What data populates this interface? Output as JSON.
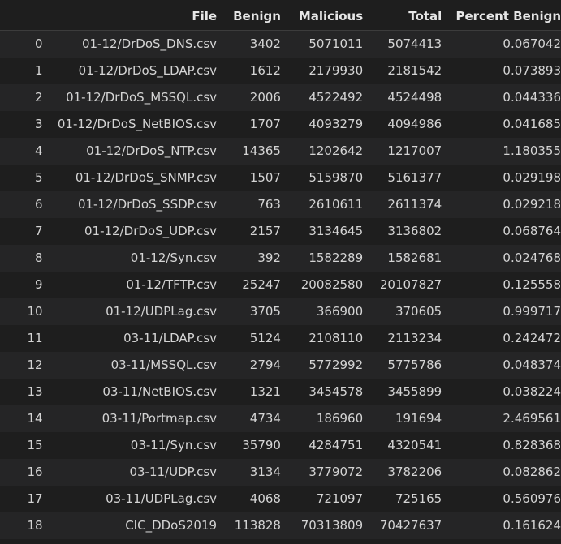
{
  "table": {
    "columns": [
      "File",
      "Benign",
      "Malicious",
      "Total",
      "Percent Benign"
    ],
    "rows": [
      {
        "index": "0",
        "file": "01-12/DrDoS_DNS.csv",
        "benign": "3402",
        "malicious": "5071011",
        "total": "5074413",
        "percent": "0.067042"
      },
      {
        "index": "1",
        "file": "01-12/DrDoS_LDAP.csv",
        "benign": "1612",
        "malicious": "2179930",
        "total": "2181542",
        "percent": "0.073893"
      },
      {
        "index": "2",
        "file": "01-12/DrDoS_MSSQL.csv",
        "benign": "2006",
        "malicious": "4522492",
        "total": "4524498",
        "percent": "0.044336"
      },
      {
        "index": "3",
        "file": "01-12/DrDoS_NetBIOS.csv",
        "benign": "1707",
        "malicious": "4093279",
        "total": "4094986",
        "percent": "0.041685"
      },
      {
        "index": "4",
        "file": "01-12/DrDoS_NTP.csv",
        "benign": "14365",
        "malicious": "1202642",
        "total": "1217007",
        "percent": "1.180355"
      },
      {
        "index": "5",
        "file": "01-12/DrDoS_SNMP.csv",
        "benign": "1507",
        "malicious": "5159870",
        "total": "5161377",
        "percent": "0.029198"
      },
      {
        "index": "6",
        "file": "01-12/DrDoS_SSDP.csv",
        "benign": "763",
        "malicious": "2610611",
        "total": "2611374",
        "percent": "0.029218"
      },
      {
        "index": "7",
        "file": "01-12/DrDoS_UDP.csv",
        "benign": "2157",
        "malicious": "3134645",
        "total": "3136802",
        "percent": "0.068764"
      },
      {
        "index": "8",
        "file": "01-12/Syn.csv",
        "benign": "392",
        "malicious": "1582289",
        "total": "1582681",
        "percent": "0.024768"
      },
      {
        "index": "9",
        "file": "01-12/TFTP.csv",
        "benign": "25247",
        "malicious": "20082580",
        "total": "20107827",
        "percent": "0.125558"
      },
      {
        "index": "10",
        "file": "01-12/UDPLag.csv",
        "benign": "3705",
        "malicious": "366900",
        "total": "370605",
        "percent": "0.999717"
      },
      {
        "index": "11",
        "file": "03-11/LDAP.csv",
        "benign": "5124",
        "malicious": "2108110",
        "total": "2113234",
        "percent": "0.242472"
      },
      {
        "index": "12",
        "file": "03-11/MSSQL.csv",
        "benign": "2794",
        "malicious": "5772992",
        "total": "5775786",
        "percent": "0.048374"
      },
      {
        "index": "13",
        "file": "03-11/NetBIOS.csv",
        "benign": "1321",
        "malicious": "3454578",
        "total": "3455899",
        "percent": "0.038224"
      },
      {
        "index": "14",
        "file": "03-11/Portmap.csv",
        "benign": "4734",
        "malicious": "186960",
        "total": "191694",
        "percent": "2.469561"
      },
      {
        "index": "15",
        "file": "03-11/Syn.csv",
        "benign": "35790",
        "malicious": "4284751",
        "total": "4320541",
        "percent": "0.828368"
      },
      {
        "index": "16",
        "file": "03-11/UDP.csv",
        "benign": "3134",
        "malicious": "3779072",
        "total": "3782206",
        "percent": "0.082862"
      },
      {
        "index": "17",
        "file": "03-11/UDPLag.csv",
        "benign": "4068",
        "malicious": "721097",
        "total": "725165",
        "percent": "0.560976"
      },
      {
        "index": "18",
        "file": "CIC_DDoS2019",
        "benign": "113828",
        "malicious": "70313809",
        "total": "70427637",
        "percent": "0.161624"
      }
    ]
  },
  "colors": {
    "background": "#1e1e1e",
    "row_alt": "#252526",
    "text": "#d4d4d4"
  }
}
